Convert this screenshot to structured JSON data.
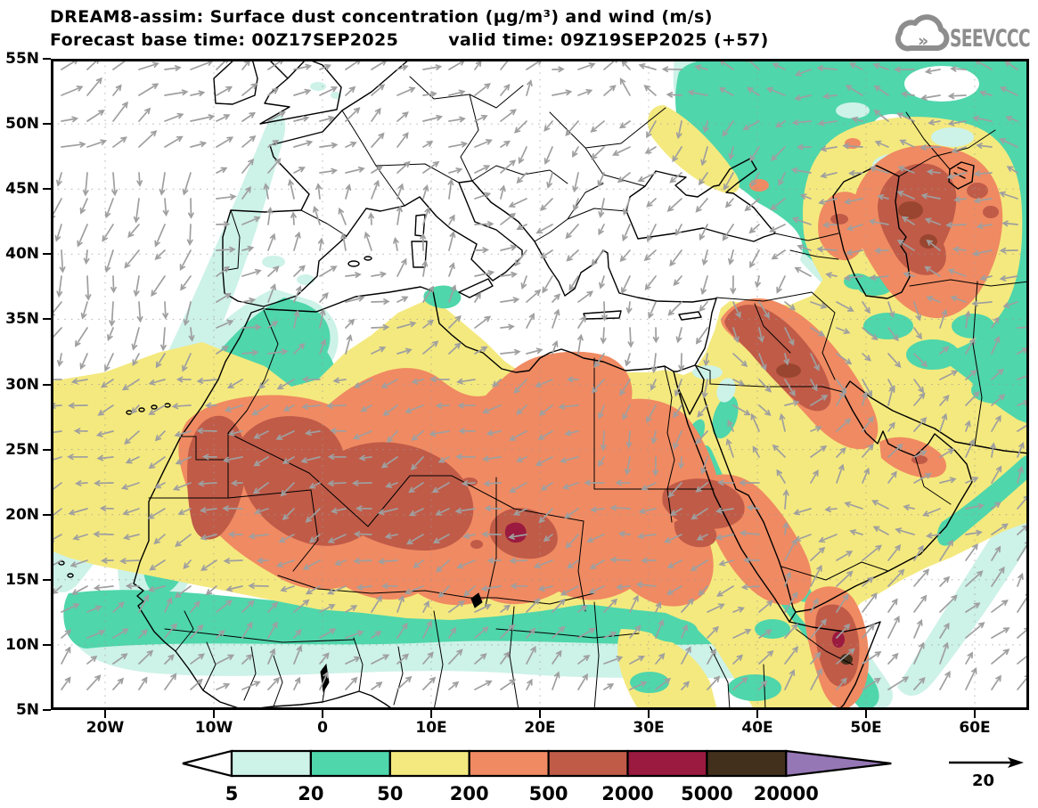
{
  "header": {
    "title_line1": "DREAM8-assim: Surface dust concentration (µg/m³) and wind (m/s)",
    "base_time": "Forecast base time: 00Z17SEP2025",
    "valid_time": "valid time: 09Z19SEP2025 (+57)"
  },
  "logo": {
    "text": "SEEVCCC",
    "color": "#8d8d8d",
    "icon": "cloud-with-chevrons-icon"
  },
  "axes": {
    "lat_ticks": [
      "55N",
      "50N",
      "45N",
      "40N",
      "35N",
      "30N",
      "25N",
      "20N",
      "15N",
      "10N",
      "5N"
    ],
    "lon_ticks": [
      "20W",
      "10W",
      "0",
      "10E",
      "20E",
      "30E",
      "40E",
      "50E",
      "60E"
    ]
  },
  "colorbar": {
    "boundary_labels": [
      "5",
      "20",
      "50",
      "200",
      "500",
      "2000",
      "5000",
      "20000"
    ],
    "cell_colors": [
      "#cdf2e8",
      "#4fd6ab",
      "#f4e97e",
      "#f08a62",
      "#c05b48",
      "#9b1a3f",
      "#43301c"
    ],
    "left_arrow_color": "#ffffff",
    "right_arrow_color": "#9677b5",
    "outline_color": "#000000"
  },
  "wind_reference": {
    "label": "20",
    "units": "m/s",
    "arrow_color": "#000000"
  },
  "wind_arrow_color": "#9f9f9f",
  "chart_data": {
    "type": "map",
    "title": "DREAM8-assim: Surface dust concentration (µg/m³) and wind (m/s)",
    "forecast_base_time": "00Z17SEP2025",
    "valid_time": "09Z19SEP2025 (+57)",
    "lon_range_deg": [
      -25,
      65
    ],
    "lat_range_deg": [
      5,
      55
    ],
    "contour_levels_ug_m3": [
      5,
      20,
      50,
      200,
      500,
      2000,
      5000,
      20000
    ],
    "wind_reference_m_s": 20,
    "features": [
      "dust plume 50-200 over subtropical Atlantic and most of Sahara and Arabia",
      "200-500 cores over Western Sahara, Algeria, Mali, Niger, Chad, Sudan, Iraq, Turkmenistan, Red Sea coasts, Somalia",
      "500-2000 patches: W-Sahara coast, central Sahara, Chad, Sudan, Syria-Iraq, east of Caspian, Somalia",
      "2000-5000 spots near 18E/18N and Somalia",
      "20-50 fringes along NW-Africa coast, Sahel, eastern Europe, Caspian surroundings, Horn of Africa",
      "clean air (<5) over western/central Europe, Mediterranean, Black Sea, Turkey, Gulf of Guinea, Indian Ocean"
    ]
  }
}
